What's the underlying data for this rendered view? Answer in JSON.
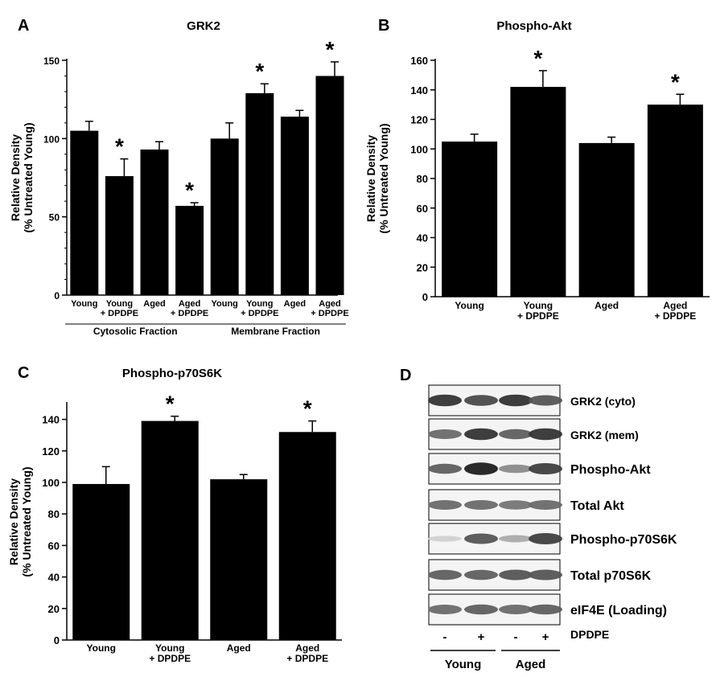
{
  "chart_data": [
    {
      "panel_letter": "A",
      "type": "bar",
      "title": "GRK2",
      "ylabel_lines": [
        "Relative Density",
        "(% Untreated Young)"
      ],
      "ylim": [
        0,
        150
      ],
      "yticks": [
        0,
        50,
        100,
        150
      ],
      "categories": [
        [
          "Young"
        ],
        [
          "Young",
          "+ DPDPE"
        ],
        [
          "Aged"
        ],
        [
          "Aged",
          "+ DPDPE"
        ],
        [
          "Young"
        ],
        [
          "Young",
          "+ DPDPE"
        ],
        [
          "Aged"
        ],
        [
          "Aged",
          "+ DPDPE"
        ]
      ],
      "values": [
        105,
        76,
        93,
        57,
        100,
        129,
        114,
        140
      ],
      "errors": [
        6,
        11,
        5,
        2,
        10,
        6,
        4,
        9
      ],
      "significant": [
        false,
        true,
        false,
        true,
        false,
        true,
        false,
        true
      ],
      "groups": [
        {
          "label": "Cytosolic Fraction",
          "from": 0,
          "to": 3
        },
        {
          "label": "Membrane Fraction",
          "from": 4,
          "to": 7
        }
      ],
      "annotation_symbol": "*"
    },
    {
      "panel_letter": "B",
      "type": "bar",
      "title": "Phospho-Akt",
      "ylabel_lines": [
        "Relative Density",
        "(% Untreated Young)"
      ],
      "ylim": [
        0,
        160
      ],
      "yticks": [
        0,
        20,
        40,
        60,
        80,
        100,
        120,
        140,
        160
      ],
      "categories": [
        [
          "Young"
        ],
        [
          "Young",
          "+ DPDPE"
        ],
        [
          "Aged"
        ],
        [
          "Aged",
          "+ DPDPE"
        ]
      ],
      "values": [
        105,
        142,
        104,
        130
      ],
      "errors": [
        5,
        11,
        4,
        7
      ],
      "significant": [
        false,
        true,
        false,
        true
      ],
      "annotation_symbol": "*"
    },
    {
      "panel_letter": "C",
      "type": "bar",
      "title": "Phospho-p70S6K",
      "ylabel_lines": [
        "Relative Density",
        "(% Untreated Young)"
      ],
      "ylim": [
        0,
        150
      ],
      "yticks": [
        0,
        20,
        40,
        60,
        80,
        100,
        120,
        140
      ],
      "categories": [
        [
          "Young"
        ],
        [
          "Young",
          "+ DPDPE"
        ],
        [
          "Aged"
        ],
        [
          "Aged",
          "+ DPDPE"
        ]
      ],
      "values": [
        99,
        139,
        102,
        132
      ],
      "errors": [
        11,
        3,
        3,
        7
      ],
      "significant": [
        false,
        true,
        false,
        true
      ],
      "annotation_symbol": "*"
    }
  ],
  "blot_panel": {
    "panel_letter": "D",
    "rows": [
      {
        "label": "GRK2 (cyto)",
        "intensities": [
          0.85,
          0.75,
          0.85,
          0.7
        ]
      },
      {
        "label": "GRK2 (mem)",
        "intensities": [
          0.6,
          0.85,
          0.65,
          0.85
        ]
      },
      {
        "label": "Phospho-Akt",
        "intensities": [
          0.65,
          0.95,
          0.45,
          0.8
        ]
      },
      {
        "label": "Total Akt",
        "intensities": [
          0.6,
          0.6,
          0.55,
          0.6
        ]
      },
      {
        "label": "Phospho-p70S6K",
        "intensities": [
          0.12,
          0.7,
          0.3,
          0.8
        ]
      },
      {
        "label": "Total p70S6K",
        "intensities": [
          0.65,
          0.65,
          0.7,
          0.7
        ]
      },
      {
        "label": "eIF4E (Loading)",
        "intensities": [
          0.6,
          0.65,
          0.6,
          0.65
        ]
      }
    ],
    "lane_treatment": [
      "-",
      "+",
      "-",
      "+"
    ],
    "treatment_label": "DPDPE",
    "groups": [
      {
        "label": "Young",
        "lanes": [
          0,
          1
        ]
      },
      {
        "label": "Aged",
        "lanes": [
          2,
          3
        ]
      }
    ]
  }
}
